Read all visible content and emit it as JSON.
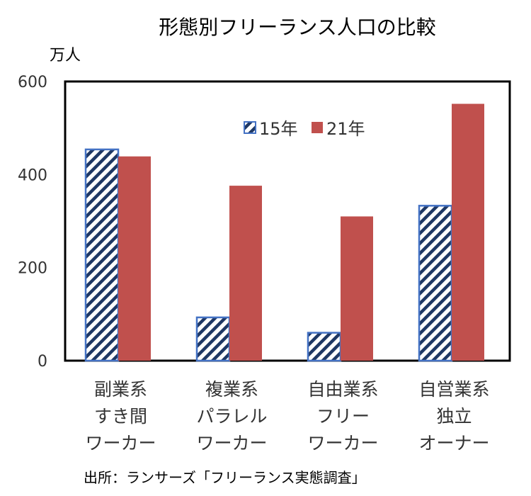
{
  "chart_data": {
    "type": "bar",
    "title": "形態別フリーランス人口の比較",
    "unit_label": "万人",
    "ylim": [
      0,
      600
    ],
    "yticks": [
      0,
      200,
      400,
      600
    ],
    "categories": [
      [
        "副業系",
        "すき間",
        "ワーカー"
      ],
      [
        "複業系",
        "パラレル",
        "ワーカー"
      ],
      [
        "自由業系",
        "フリー",
        "ワーカー"
      ],
      [
        "自営業系",
        "独立",
        "オーナー"
      ]
    ],
    "series": [
      {
        "name": "15年",
        "values": [
          454,
          93,
          60,
          333
        ],
        "color": "#4472C4",
        "pattern": "hatch"
      },
      {
        "name": "21年",
        "values": [
          439,
          376,
          310,
          552
        ],
        "color": "#C0504D",
        "pattern": "solid"
      }
    ],
    "legend_position": "top-center",
    "grid": false
  },
  "source_note": "出所：ランサーズ「フリーランス実態調査」"
}
